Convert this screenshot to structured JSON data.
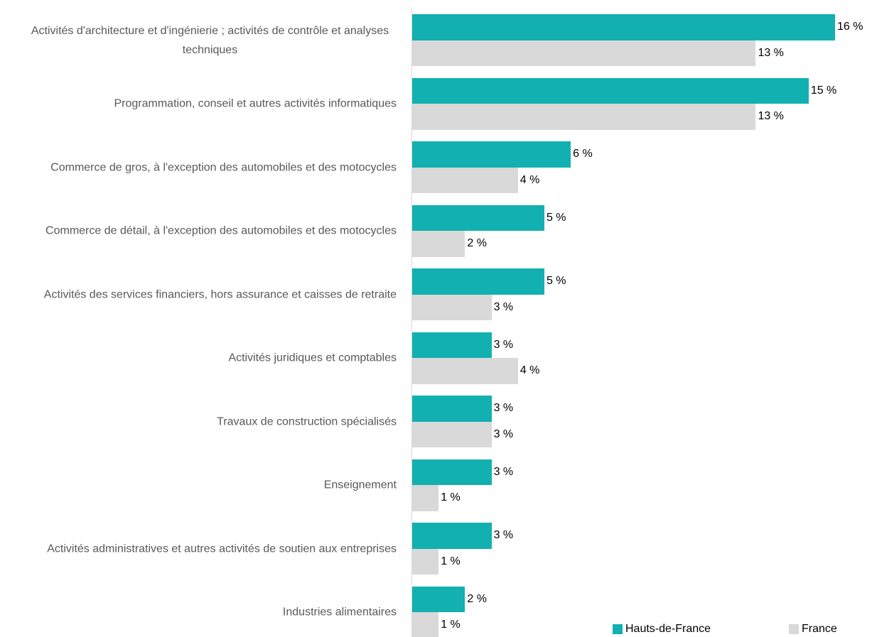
{
  "chart_data": {
    "type": "bar",
    "orientation": "horizontal",
    "categories": [
      "Activités d'architecture et d'ingénierie ; activités de contrôle et analyses techniques",
      "Programmation, conseil et autres activités informatiques",
      "Commerce de gros, à l'exception des automobiles et des motocycles",
      "Commerce de détail, à l'exception des automobiles et des motocycles",
      "Activités des services financiers, hors assurance et caisses de retraite",
      "Activités juridiques et comptables",
      "Travaux de construction spécialisés",
      "Enseignement",
      "Activités administratives et autres activités de soutien aux entreprises",
      "Industries alimentaires"
    ],
    "series": [
      {
        "name": "Hauts-de-France",
        "color": "#12b0b0",
        "values": [
          16,
          15,
          6,
          5,
          5,
          3,
          3,
          3,
          3,
          2
        ],
        "value_labels": [
          "16 %",
          "15 %",
          "6 %",
          "5 %",
          "5 %",
          "3 %",
          "3 %",
          "3 %",
          "3 %",
          "2 %"
        ]
      },
      {
        "name": "France",
        "color": "#d9d9d9",
        "values": [
          13,
          13,
          4,
          2,
          3,
          4,
          3,
          1,
          1,
          1
        ],
        "value_labels": [
          "13 %",
          "13 %",
          "4 %",
          "2 %",
          "3 %",
          "4 %",
          "3 %",
          "1 %",
          "1 %",
          "1 %"
        ]
      }
    ],
    "xlim": [
      0,
      16
    ],
    "legend": "bottom-right"
  }
}
